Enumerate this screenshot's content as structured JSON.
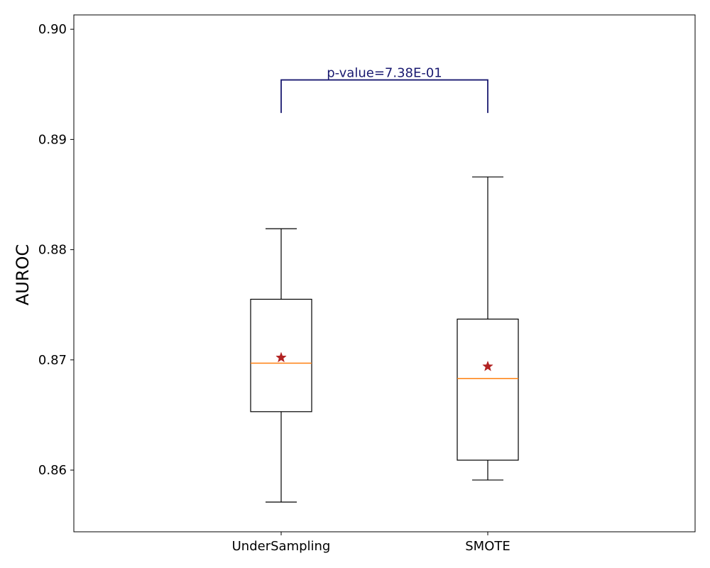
{
  "chart_data": {
    "type": "box",
    "title": "",
    "xlabel": "",
    "ylabel": "AUROC",
    "ylim": [
      0.8544,
      0.9013
    ],
    "yticks": [
      0.86,
      0.87,
      0.88,
      0.89,
      0.9
    ],
    "ytick_labels": [
      "0.86",
      "0.87",
      "0.88",
      "0.89",
      "0.90"
    ],
    "grid": false,
    "categories": [
      "UnderSampling",
      "SMOTE"
    ],
    "boxes": [
      {
        "whisker_low": 0.8571,
        "q1": 0.8653,
        "median": 0.8697,
        "q3": 0.8755,
        "whisker_high": 0.8819,
        "mean": 0.8702
      },
      {
        "whisker_low": 0.8591,
        "q1": 0.8609,
        "median": 0.8683,
        "q3": 0.8737,
        "whisker_high": 0.8866,
        "mean": 0.8694
      }
    ],
    "annotation": {
      "text": "p-value=7.38E-01",
      "between": [
        "UnderSampling",
        "SMOTE"
      ],
      "bracket_top": 0.8954,
      "bracket_bottom": 0.8924
    },
    "colors": {
      "box": "#000000",
      "median": "#ff7f0e",
      "mean_marker": "#b22222",
      "annotation": "#191970"
    }
  }
}
